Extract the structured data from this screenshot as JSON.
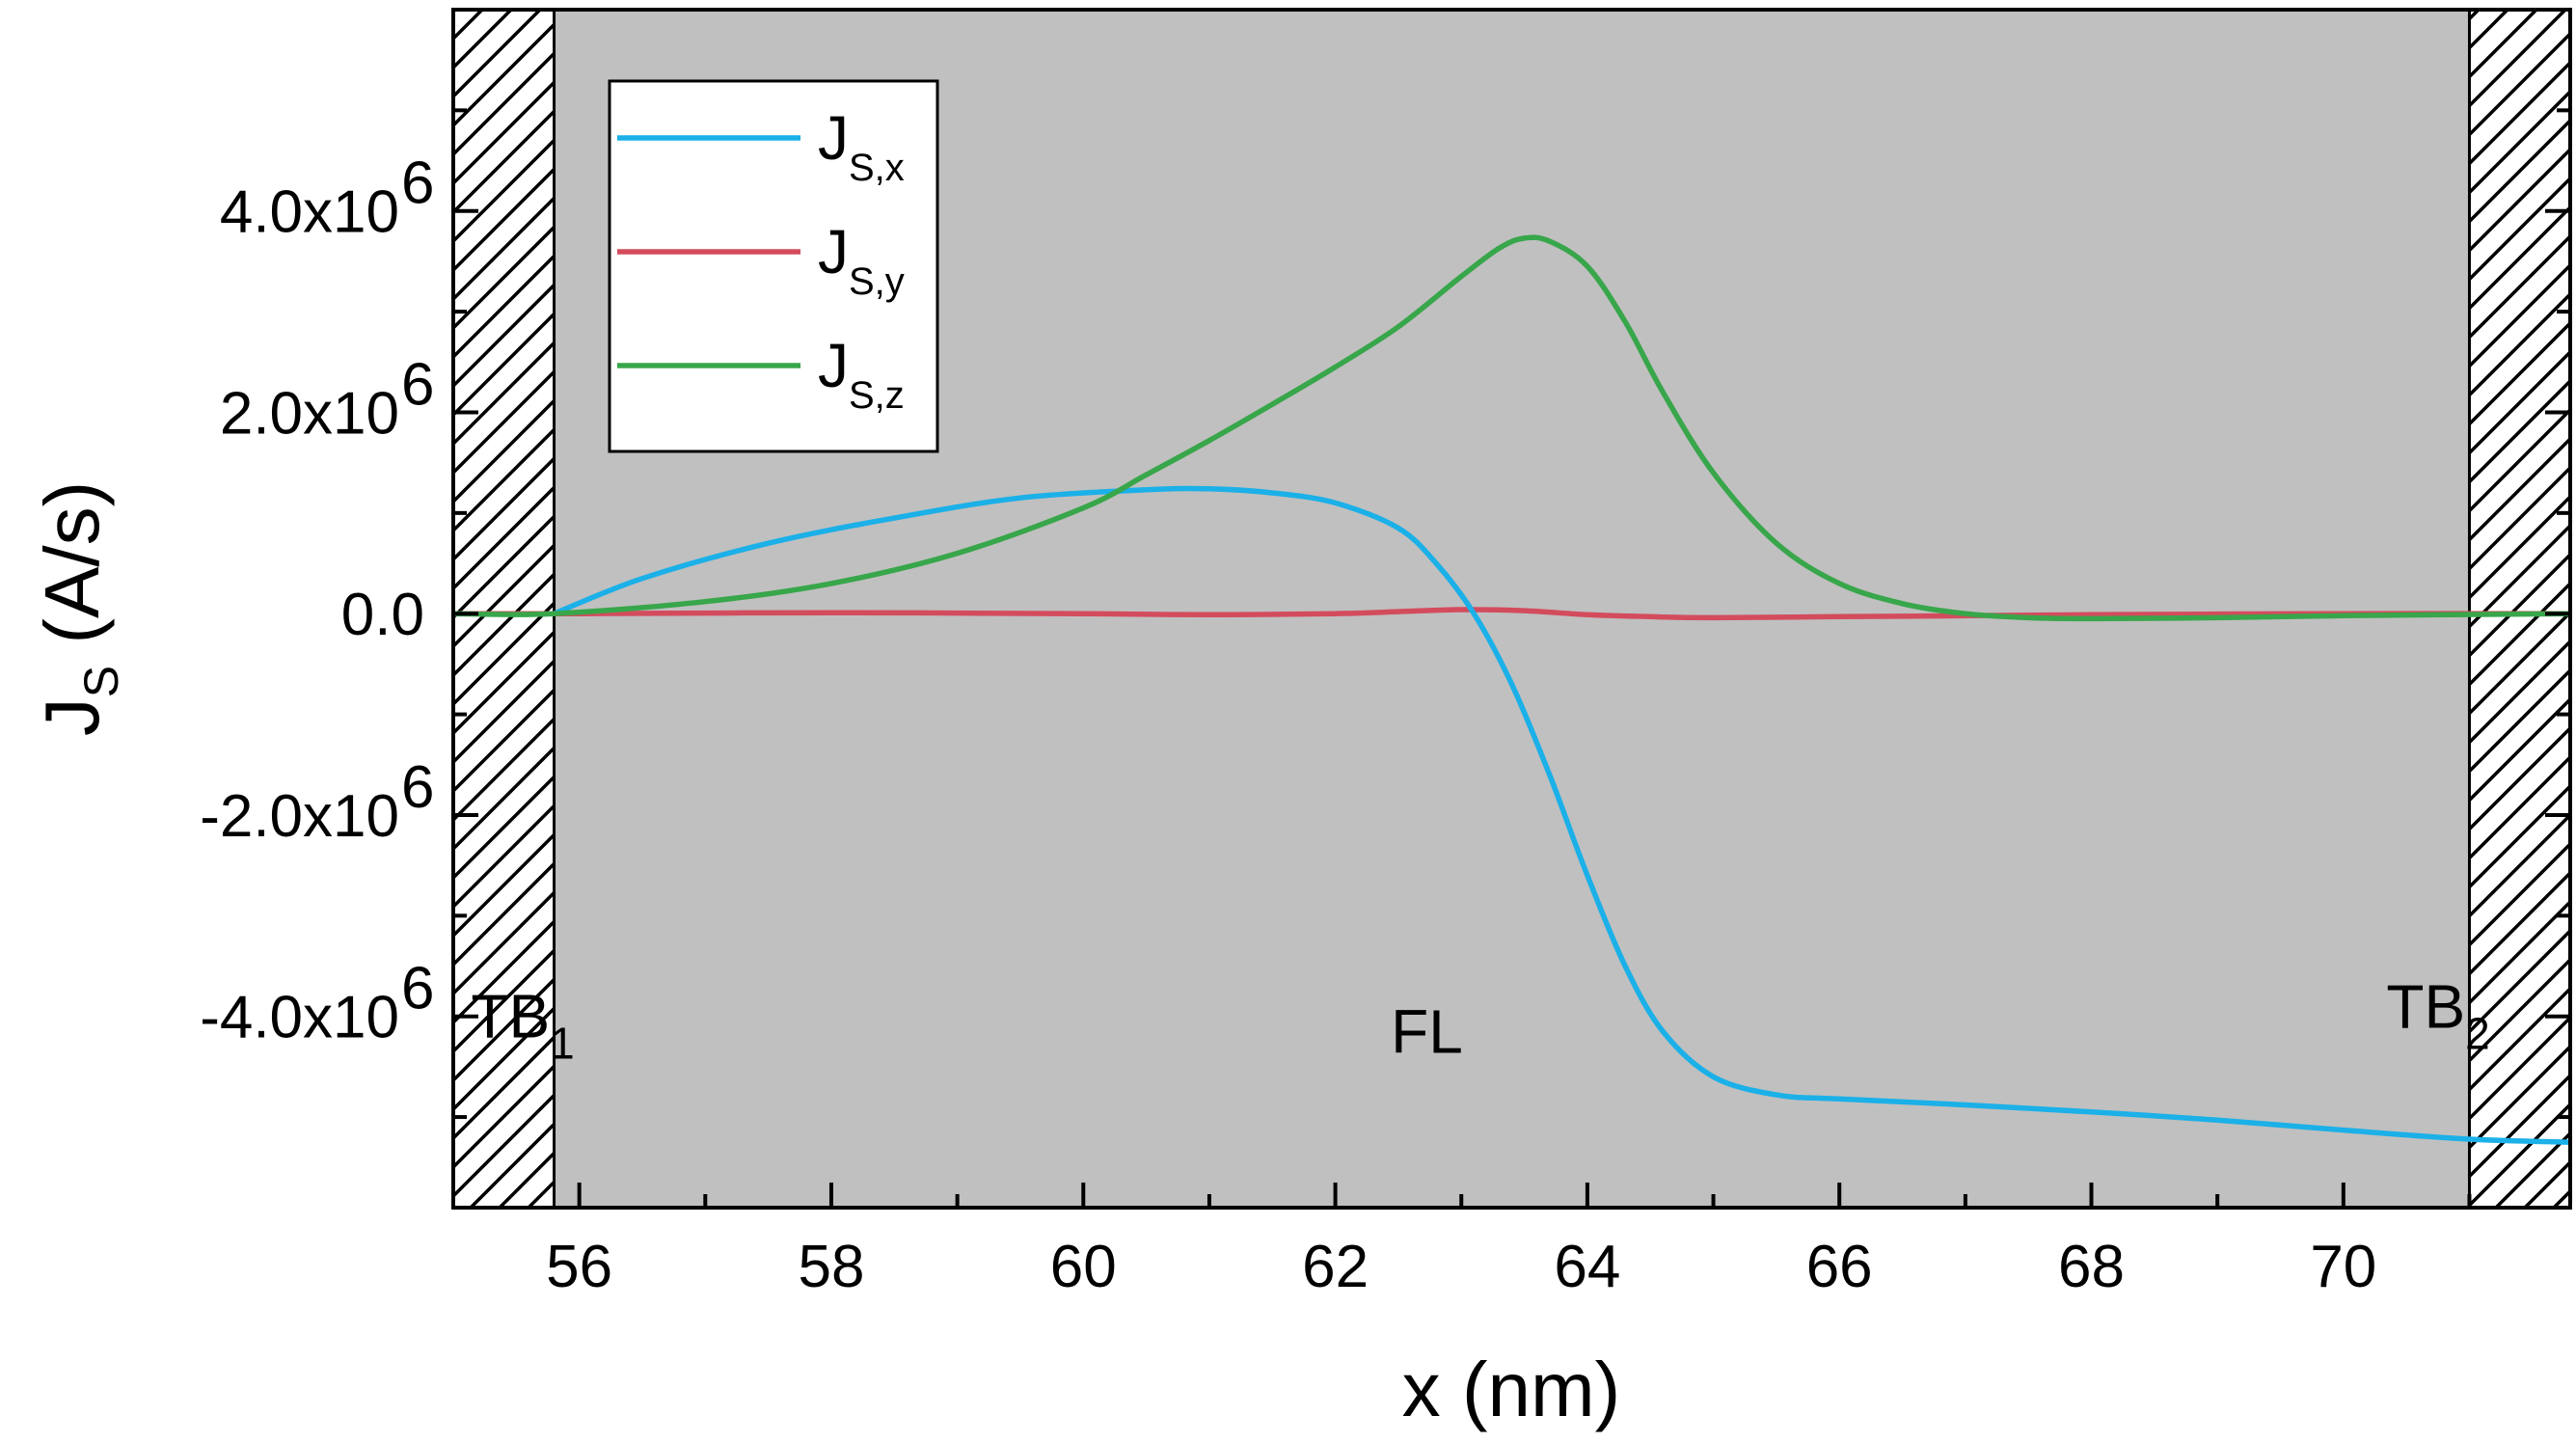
{
  "chart_data": {
    "type": "line",
    "title": "",
    "xlabel": "x (nm)",
    "ylabel": {
      "main": "J",
      "sub": "S",
      "unit": " (A/s)"
    },
    "xlim": [
      55.0,
      71.8
    ],
    "ylim": [
      -5.9,
      6.0
    ],
    "y_scale_label": "x10",
    "x_ticks": [
      56,
      58,
      60,
      62,
      64,
      66,
      68,
      70
    ],
    "y_ticks": [
      {
        "value": -4.0,
        "mant": "-4.0",
        "base": "x10",
        "exp": "6"
      },
      {
        "value": -2.0,
        "mant": "-2.0",
        "base": "x10",
        "exp": "6"
      },
      {
        "value": 0.0,
        "mant": "0.0",
        "base": "",
        "exp": ""
      },
      {
        "value": 2.0,
        "mant": "2.0",
        "base": "x10",
        "exp": "6"
      },
      {
        "value": 4.0,
        "mant": "4.0",
        "base": "x10",
        "exp": "6"
      }
    ],
    "barrier_regions": [
      [
        55.0,
        55.8
      ],
      [
        71.0,
        71.8
      ]
    ],
    "annotations": [
      {
        "main": "TB",
        "sub": "1",
        "x": 55.6,
        "y": -4.0
      },
      {
        "main": "FL",
        "sub": "",
        "x": 62.9,
        "y": -4.15
      },
      {
        "main": "TB",
        "sub": "2",
        "x": 70.8,
        "y": -3.9
      }
    ],
    "legend_position": "top-left",
    "series": [
      {
        "name": "J_S,x",
        "label_main": "J",
        "label_sub": "S,x",
        "color": "#1bb0e8",
        "x": [
          55.8,
          56.5,
          57.5,
          58.5,
          59.5,
          60.5,
          61.0,
          61.5,
          62.0,
          62.5,
          62.8,
          63.1,
          63.4,
          63.7,
          64.0,
          64.3,
          64.6,
          65.0,
          65.5,
          66.0,
          67.0,
          68.0,
          69.0,
          70.0,
          71.0,
          71.8
        ],
        "values": [
          0.0,
          0.35,
          0.7,
          0.95,
          1.15,
          1.23,
          1.24,
          1.2,
          1.1,
          0.85,
          0.5,
          0.0,
          -0.7,
          -1.6,
          -2.6,
          -3.5,
          -4.15,
          -4.6,
          -4.78,
          -4.82,
          -4.88,
          -4.95,
          -5.03,
          -5.13,
          -5.22,
          -5.25
        ]
      },
      {
        "name": "J_S,y",
        "label_main": "J",
        "label_sub": "S,y",
        "color": "#d34c5d",
        "x": [
          55.0,
          56.0,
          58.0,
          60.0,
          61.0,
          62.0,
          62.5,
          63.0,
          63.5,
          64.0,
          64.5,
          65.0,
          66.0,
          67.0,
          68.0,
          70.0,
          71.8
        ],
        "values": [
          0.0,
          0.0,
          0.01,
          0.0,
          -0.01,
          0.0,
          0.02,
          0.04,
          0.03,
          -0.01,
          -0.03,
          -0.04,
          -0.03,
          -0.02,
          -0.01,
          0.0,
          0.0
        ]
      },
      {
        "name": "J_S,z",
        "label_main": "J",
        "label_sub": "S,z",
        "color": "#38a64a",
        "x": [
          55.0,
          55.8,
          57.0,
          58.0,
          59.0,
          60.0,
          60.5,
          61.0,
          61.5,
          62.0,
          62.5,
          63.0,
          63.3,
          63.5,
          63.7,
          64.0,
          64.3,
          64.6,
          65.0,
          65.5,
          66.0,
          66.5,
          67.0,
          67.5,
          68.0,
          69.0,
          70.0,
          71.8
        ],
        "values": [
          0.0,
          0.0,
          0.12,
          0.3,
          0.6,
          1.05,
          1.38,
          1.72,
          2.08,
          2.45,
          2.85,
          3.35,
          3.63,
          3.73,
          3.7,
          3.45,
          2.9,
          2.2,
          1.4,
          0.7,
          0.3,
          0.1,
          0.0,
          -0.04,
          -0.05,
          -0.04,
          -0.02,
          0.0
        ]
      }
    ]
  }
}
